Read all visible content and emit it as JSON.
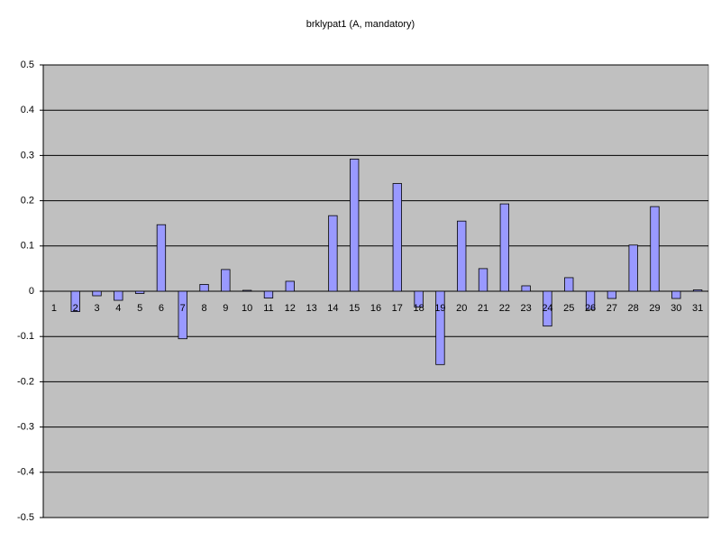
{
  "chart_data": {
    "type": "bar",
    "title": "brklypat1 (A, mandatory)",
    "categories": [
      "1",
      "2",
      "3",
      "4",
      "5",
      "6",
      "7",
      "8",
      "9",
      "10",
      "11",
      "12",
      "13",
      "14",
      "15",
      "16",
      "17",
      "18",
      "19",
      "20",
      "21",
      "22",
      "23",
      "24",
      "25",
      "26",
      "27",
      "28",
      "29",
      "30",
      "31"
    ],
    "values": [
      0,
      -0.045,
      -0.01,
      -0.02,
      -0.005,
      0.147,
      -0.105,
      0.015,
      0.048,
      0.002,
      -0.015,
      0.022,
      0,
      0.167,
      0.292,
      0,
      0.238,
      -0.035,
      -0.162,
      0.155,
      0.05,
      0.193,
      0.012,
      -0.077,
      0.03,
      -0.04,
      -0.016,
      0.102,
      0.187,
      -0.016,
      0.003
    ],
    "color": "#9999ff",
    "ylim": [
      -0.5,
      0.5
    ],
    "yticks": [
      -0.5,
      -0.4,
      -0.3,
      -0.2,
      -0.1,
      0,
      0.1,
      0.2,
      0.3,
      0.4,
      0.5
    ],
    "grid": true
  }
}
